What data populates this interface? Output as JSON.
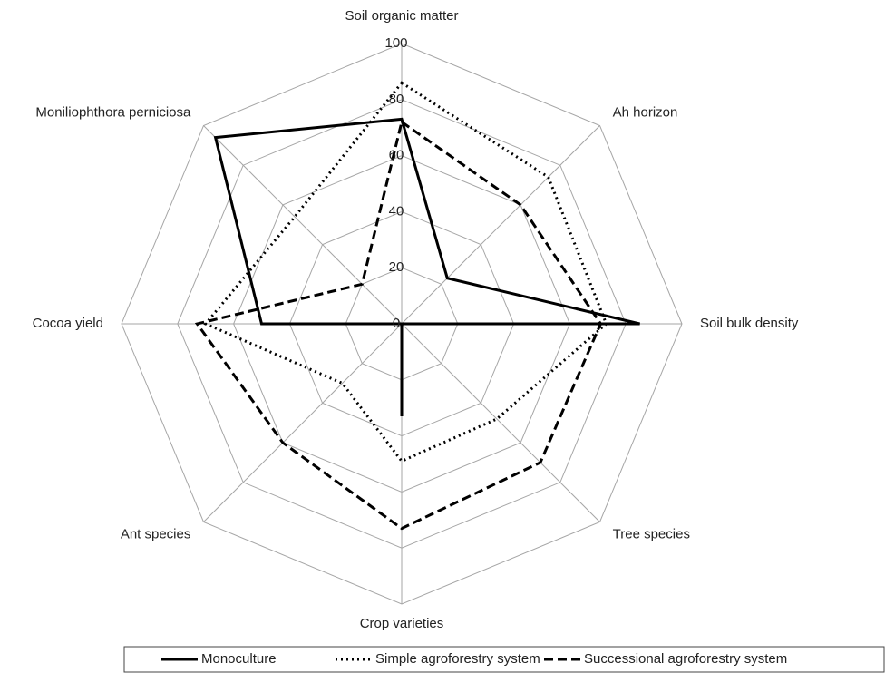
{
  "chart_data": {
    "type": "radar",
    "categories": [
      "Soil organic matter",
      "Ah horizon",
      "Soil bulk density",
      "Tree species",
      "Crop varieties",
      "Ant species",
      "Cocoa yield",
      "Moniliophthora perniciosa"
    ],
    "ylim": [
      0,
      100
    ],
    "yticks": [
      0,
      20,
      40,
      60,
      80,
      100
    ],
    "grid": true,
    "legend": "bottom",
    "series": [
      {
        "name": "Monoculture",
        "color": "#000000",
        "line_style": "solid",
        "values": [
          73,
          23,
          85,
          0,
          33,
          0,
          50,
          94
        ]
      },
      {
        "name": "Simple agroforestry system",
        "color": "#000000",
        "line_style": "dotted",
        "values": [
          86,
          74,
          73,
          48,
          49,
          30,
          70,
          54
        ]
      },
      {
        "name": "Successional agroforestry system",
        "color": "#000000",
        "line_style": "dashed",
        "values": [
          72,
          60,
          71,
          70,
          73,
          60,
          73,
          20
        ]
      }
    ]
  }
}
